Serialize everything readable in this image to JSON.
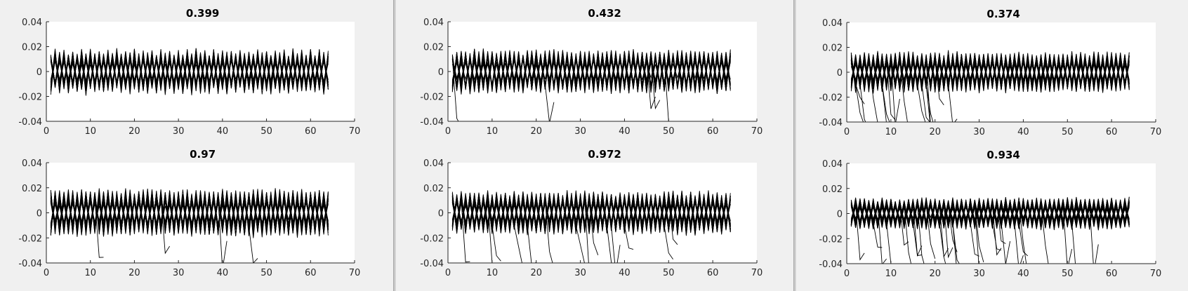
{
  "figures": [
    {
      "panels": [
        {
          "title": "0.399"
        },
        {
          "title": "0.97"
        }
      ]
    },
    {
      "panels": [
        {
          "title": "0.432"
        },
        {
          "title": "0.972"
        }
      ]
    },
    {
      "panels": [
        {
          "title": "0.374"
        },
        {
          "title": "0.934"
        }
      ]
    }
  ],
  "chart_data": [
    {
      "type": "line",
      "title": "0.399",
      "xlim": [
        0,
        70
      ],
      "ylim": [
        -0.04,
        0.04
      ],
      "xticks": [
        "0",
        "10",
        "20",
        "30",
        "40",
        "50",
        "60",
        "70"
      ],
      "yticks": [
        "0.04",
        "0.02",
        "0",
        "-0.02",
        "-0.04"
      ],
      "x": [
        1,
        64
      ],
      "amplitude": 0.018,
      "n_traces": 40,
      "n_outliers": 0,
      "color": "#000000"
    },
    {
      "type": "line",
      "title": "0.97",
      "xlim": [
        0,
        70
      ],
      "ylim": [
        -0.04,
        0.04
      ],
      "xticks": [
        "0",
        "10",
        "20",
        "30",
        "40",
        "50",
        "60",
        "70"
      ],
      "yticks": [
        "0.04",
        "0.02",
        "0",
        "-0.02",
        "-0.04"
      ],
      "x": [
        1,
        64
      ],
      "amplitude": 0.019,
      "n_traces": 55,
      "n_outliers": 4,
      "color": "#000000"
    },
    {
      "type": "line",
      "title": "0.432",
      "xlim": [
        0,
        70
      ],
      "ylim": [
        -0.04,
        0.04
      ],
      "xticks": [
        "0",
        "10",
        "20",
        "30",
        "40",
        "50",
        "60",
        "70"
      ],
      "yticks": [
        "0.04",
        "0.02",
        "0",
        "-0.02",
        "-0.04"
      ],
      "x": [
        1,
        64
      ],
      "amplitude": 0.017,
      "n_traces": 45,
      "n_outliers": 5,
      "color": "#000000"
    },
    {
      "type": "line",
      "title": "0.972",
      "xlim": [
        0,
        70
      ],
      "ylim": [
        -0.04,
        0.04
      ],
      "xticks": [
        "0",
        "10",
        "20",
        "30",
        "40",
        "50",
        "60",
        "70"
      ],
      "yticks": [
        "0.04",
        "0.02",
        "0",
        "-0.02",
        "-0.04"
      ],
      "x": [
        1,
        64
      ],
      "amplitude": 0.017,
      "n_traces": 60,
      "n_outliers": 14,
      "color": "#000000"
    },
    {
      "type": "line",
      "title": "0.374",
      "xlim": [
        0,
        70
      ],
      "ylim": [
        -0.04,
        0.04
      ],
      "xticks": [
        "0",
        "10",
        "20",
        "30",
        "40",
        "50",
        "60",
        "70"
      ],
      "yticks": [
        "0.04",
        "0.02",
        "0",
        "-0.02",
        "-0.04"
      ],
      "x": [
        1,
        64
      ],
      "amplitude": 0.016,
      "n_traces": 50,
      "n_outliers": 16,
      "color": "#000000"
    },
    {
      "type": "line",
      "title": "0.934",
      "xlim": [
        0,
        70
      ],
      "ylim": [
        -0.04,
        0.04
      ],
      "xticks": [
        "0",
        "10",
        "20",
        "30",
        "40",
        "50",
        "60",
        "70"
      ],
      "yticks": [
        "0.04",
        "0.02",
        "0",
        "-0.02",
        "-0.04"
      ],
      "x": [
        1,
        64
      ],
      "amplitude": 0.012,
      "n_traces": 70,
      "n_outliers": 30,
      "color": "#000000"
    }
  ]
}
